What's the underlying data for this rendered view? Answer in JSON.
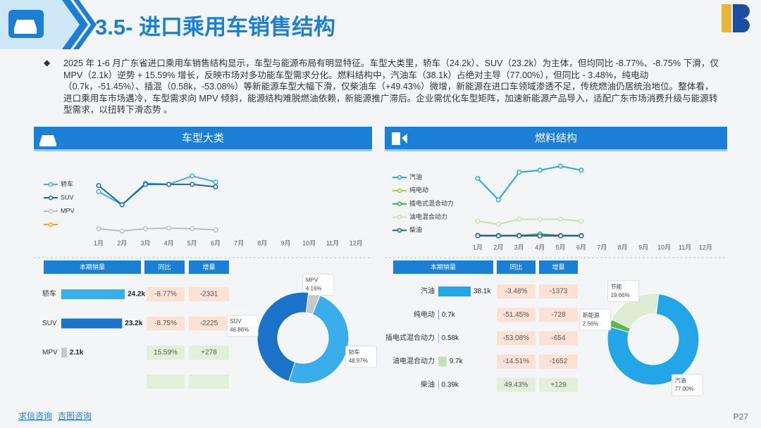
{
  "header": {
    "title": "3.5- 进口乘用车销售结构"
  },
  "summary": "2025 年 1-6 月广东省进口乘用车销售结构显示，车型与能源布局有明显特征。车型大类里，轿车（24.2k）、SUV（23.2k）为主体，但均同比 -8.77%、-8.75% 下滑，仅 MPV（2.1k）逆势 + 15.59% 增长，反映市场对多功能车型需求分化。燃料结构中，汽油车（38.1k）占绝对主导（77.00%），但同比 - 3.48%，纯电动（0.7k，-51.45%）、插混（0.58k，-53.08%）等新能源车型大幅下滑，仅柴油车（+49.43%）微增，新能源在进口车领域渗透不足，传统燃油仍居统治地位。整体看，进口乘用车市场遇冷，车型需求向 MPV 倾斜，能源结构难脱燃油依赖，新能源推广滞后。企业需优化车型矩阵，加速新能源产品导入，适配广东市场消费升级与能源转型需求，以扭转下滑态势 。",
  "panels": [
    {
      "title": "车型大类",
      "chart_data": {
        "type": "line",
        "categories": [
          "1月",
          "2月",
          "3月",
          "4月",
          "5月",
          "6月",
          "7月",
          "8月",
          "9月",
          "10月",
          "11月",
          "12月"
        ],
        "series": [
          {
            "name": "轿车",
            "color": "#3aaeea",
            "values": [
              3.4,
              2.3,
              4.1,
              4.0,
              4.7,
              4.2,
              null,
              null,
              null,
              null,
              null,
              null
            ]
          },
          {
            "name": "SUV",
            "color": "#1565c0",
            "values": [
              3.9,
              2.3,
              4.0,
              4.0,
              4.0,
              3.8,
              null,
              null,
              null,
              null,
              null,
              null
            ]
          },
          {
            "name": "MPV",
            "color": "#bdbdbd",
            "values": [
              0.3,
              0.1,
              0.3,
              0.35,
              0.3,
              0.2,
              null,
              null,
              null,
              null,
              null,
              null
            ]
          },
          {
            "name": null,
            "color": "#f5a623",
            "values": [
              null,
              null,
              null,
              null,
              null,
              null,
              null,
              null,
              null,
              null,
              null,
              null
            ]
          }
        ]
      },
      "table": {
        "headers": [
          "本期销量",
          "同比",
          "增量"
        ],
        "rows": [
          {
            "name": "轿车",
            "value": 24.2,
            "value_label": "24.2k",
            "yoy": "-8.77%",
            "delta": "-2331"
          },
          {
            "name": "SUV",
            "value": 23.2,
            "value_label": "23.2k",
            "yoy": "-8.75%",
            "delta": "-2225"
          },
          {
            "name": "MPV",
            "value": 2.1,
            "value_label": "2.1k",
            "yoy": "15.59%",
            "delta": "+278"
          }
        ]
      },
      "pie": {
        "type": "pie",
        "categories": [
          "MPV",
          "轿车",
          "SUV"
        ],
        "values": [
          4.16,
          48.97,
          46.86
        ],
        "value_labels": [
          "4.16%",
          "48.97%",
          "46.86%"
        ],
        "colors": [
          "#c8c8c8",
          "#3aaeea",
          "#1a73c9"
        ]
      }
    },
    {
      "title": "燃料结构",
      "chart_data": {
        "type": "line",
        "categories": [
          "1月",
          "2月",
          "3月",
          "4月",
          "5月",
          "6月",
          "7月",
          "8月",
          "9月",
          "10月",
          "11月",
          "12月"
        ],
        "series": [
          {
            "name": "汽油",
            "color": "#22a6e8",
            "values": [
              5.7,
              3.6,
              6.3,
              6.5,
              6.9,
              6.5,
              null,
              null,
              null,
              null,
              null,
              null
            ]
          },
          {
            "name": "纯电动",
            "color": "#92d050",
            "values": [
              0.13,
              0.12,
              0.12,
              0.11,
              0.11,
              0.11,
              null,
              null,
              null,
              null,
              null,
              null
            ]
          },
          {
            "name": "插电式混合动力",
            "color": "#2eaa4a",
            "values": [
              0.1,
              0.1,
              0.1,
              0.25,
              0.1,
              0.1,
              null,
              null,
              null,
              null,
              null,
              null
            ]
          },
          {
            "name": "油电混合动力",
            "color": "#c5e0b4",
            "values": [
              1.5,
              1.2,
              1.7,
              1.7,
              1.7,
              1.5,
              null,
              null,
              null,
              null,
              null,
              null
            ]
          },
          {
            "name": "柴油",
            "color": "#1f5fa8",
            "values": [
              0.07,
              0.06,
              0.07,
              0.06,
              0.07,
              0.06,
              null,
              null,
              null,
              null,
              null,
              null
            ]
          }
        ]
      },
      "table": {
        "headers": [
          "本期销量",
          "同比",
          "增量"
        ],
        "rows": [
          {
            "name": "汽油",
            "value": 38.1,
            "value_label": "38.1k",
            "yoy": "-3.48%",
            "delta": "-1373"
          },
          {
            "name": "纯电动",
            "value": 0.7,
            "value_label": "0.7k",
            "yoy": "-51.45%",
            "delta": "-728"
          },
          {
            "name": "插电式混合动力",
            "value": 0.58,
            "value_label": "0.58k",
            "yoy": "-53.08%",
            "delta": "-654"
          },
          {
            "name": "油电混合动力",
            "value": 9.7,
            "value_label": "9.7k",
            "yoy": "-14.51%",
            "delta": "-1652"
          },
          {
            "name": "柴油",
            "value": 0.39,
            "value_label": "0.39k",
            "yoy": "49.43%",
            "delta": "+129"
          }
        ]
      },
      "pie": {
        "type": "pie",
        "categories": [
          "汽油",
          "新能源",
          "节能"
        ],
        "values": [
          77.0,
          2.56,
          19.66
        ],
        "value_labels": [
          "77.00%",
          "2.56%",
          "19.66%"
        ],
        "colors": [
          "#22a6e8",
          "#5bb84a",
          "#dcebd2"
        ]
      }
    }
  ],
  "footer": {
    "links": [
      "求信咨询",
      "吉图咨询"
    ],
    "page": "P27"
  }
}
